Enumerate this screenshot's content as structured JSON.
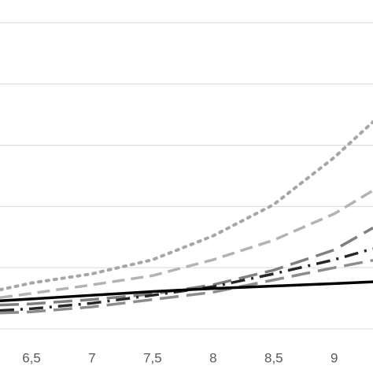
{
  "chart_data": {
    "type": "line",
    "x": [
      6.24,
      6.5,
      7,
      7.5,
      8,
      8.5,
      9,
      9.32
    ],
    "xlim": [
      6.24,
      9.32
    ],
    "xticks": [
      {
        "value": 6.5,
        "label": "6,5"
      },
      7,
      {
        "value": 7.5,
        "label": "7,5"
      },
      8,
      {
        "value": 8.5,
        "label": "8,5"
      },
      9
    ],
    "ylim": [
      0,
      5.37
    ],
    "ygrid": [
      0,
      1,
      2,
      3,
      4,
      5
    ],
    "series": [
      {
        "color": "#a6a6a6",
        "dash": "dot",
        "values": [
          0.64,
          0.75,
          0.9,
          1.13,
          1.52,
          2.03,
          2.8,
          3.38
        ]
      },
      {
        "color": "#b3b3b3",
        "dash": "dash",
        "values": [
          0.51,
          0.58,
          0.72,
          0.87,
          1.13,
          1.45,
          1.88,
          2.26
        ]
      },
      {
        "color": "#7f7f7f",
        "dash": "longdash",
        "values": [
          0.39,
          0.41,
          0.48,
          0.57,
          0.72,
          0.96,
          1.29,
          1.65
        ]
      },
      {
        "color": "#262626",
        "dash": "dashdot",
        "values": [
          0.3,
          0.33,
          0.42,
          0.55,
          0.69,
          0.9,
          1.13,
          1.31
        ]
      },
      {
        "color": "#8c8c8c",
        "dash": "longdash",
        "values": [
          0.26,
          0.28,
          0.36,
          0.48,
          0.6,
          0.8,
          1.0,
          1.12
        ]
      },
      {
        "color": "#000000",
        "dash": "solid",
        "values": [
          0.46,
          0.49,
          0.55,
          0.61,
          0.66,
          0.7,
          0.74,
          0.77
        ]
      }
    ]
  }
}
